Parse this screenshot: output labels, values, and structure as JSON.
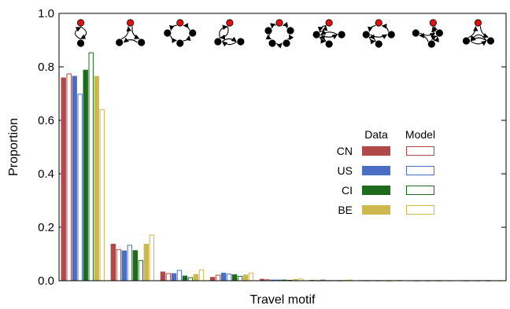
{
  "chart_data": {
    "type": "bar",
    "xlabel": "Travel motif",
    "ylabel": "Proportion",
    "ylim": [
      0,
      1.0
    ],
    "y_ticks": [
      "0.0",
      "0.2",
      "0.4",
      "0.6",
      "0.8",
      "1.0"
    ],
    "categories": [
      "motif-1",
      "motif-2",
      "motif-3",
      "motif-4",
      "motif-5",
      "motif-6",
      "motif-7",
      "motif-8",
      "motif-9"
    ],
    "legend": {
      "placement": "center-right",
      "data_header": "Data",
      "model_header": "Model"
    },
    "series": [
      {
        "name": "CN",
        "color": "#b04a4a",
        "data": [
          0.76,
          0.138,
          0.034,
          0.014,
          0.007,
          0.003,
          0.002,
          0.001,
          0.001
        ],
        "model": [
          0.775,
          0.118,
          0.028,
          0.022,
          0.005,
          0.002,
          0.001,
          0.001,
          0.001
        ]
      },
      {
        "name": "US",
        "color": "#4a6fc2",
        "data": [
          0.766,
          0.113,
          0.028,
          0.03,
          0.004,
          0.004,
          0.002,
          0.001,
          0.001
        ],
        "model": [
          0.699,
          0.134,
          0.04,
          0.026,
          0.004,
          0.002,
          0.002,
          0.001,
          0.001
        ]
      },
      {
        "name": "CI",
        "color": "#1e6b1e",
        "data": [
          0.789,
          0.114,
          0.019,
          0.024,
          0.004,
          0.002,
          0.001,
          0.001,
          0.001
        ],
        "model": [
          0.854,
          0.077,
          0.013,
          0.018,
          0.003,
          0.002,
          0.001,
          0.001,
          0.001
        ]
      },
      {
        "name": "BE",
        "color": "#cdb84e",
        "data": [
          0.766,
          0.138,
          0.025,
          0.023,
          0.006,
          0.003,
          0.002,
          0.001,
          0.001
        ],
        "model": [
          0.641,
          0.172,
          0.042,
          0.03,
          0.008,
          0.004,
          0.003,
          0.001,
          0.001
        ]
      }
    ],
    "motif_icon_colors": {
      "home_node": "#e01010",
      "node": "#000000"
    }
  }
}
